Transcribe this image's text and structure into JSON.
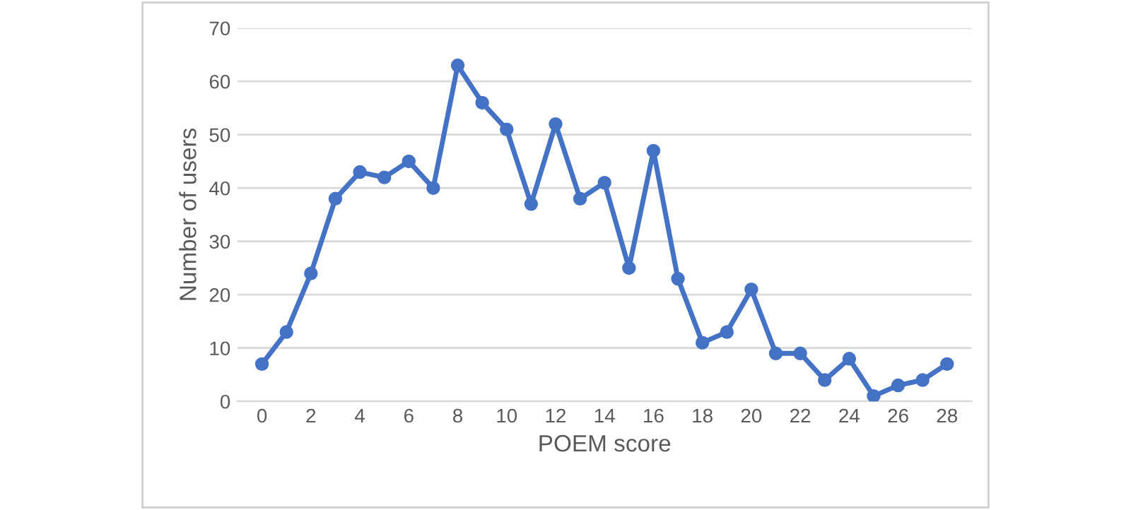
{
  "chart_data": {
    "type": "line",
    "xlabel": "POEM score",
    "ylabel": "Number of users",
    "x": [
      0,
      1,
      2,
      3,
      4,
      5,
      6,
      7,
      8,
      9,
      10,
      11,
      12,
      13,
      14,
      15,
      16,
      17,
      18,
      19,
      20,
      21,
      22,
      23,
      24,
      25,
      26,
      27,
      28
    ],
    "series": [
      {
        "color": "#4472c4",
        "values": [
          7,
          13,
          24,
          38,
          43,
          42,
          45,
          40,
          63,
          56,
          51,
          37,
          52,
          38,
          41,
          25,
          47,
          23,
          11,
          13,
          21,
          9,
          9,
          4,
          8,
          1,
          3,
          4,
          7
        ]
      }
    ],
    "xlim": [
      -1,
      29
    ],
    "xticks": [
      0,
      2,
      4,
      6,
      8,
      10,
      12,
      14,
      16,
      18,
      20,
      22,
      24,
      26,
      28
    ],
    "ylim": [
      0,
      70
    ],
    "yticks": [
      0,
      10,
      20,
      30,
      40,
      50,
      60,
      70
    ],
    "grid": "y",
    "marker": "circle",
    "line_style": "solid"
  }
}
